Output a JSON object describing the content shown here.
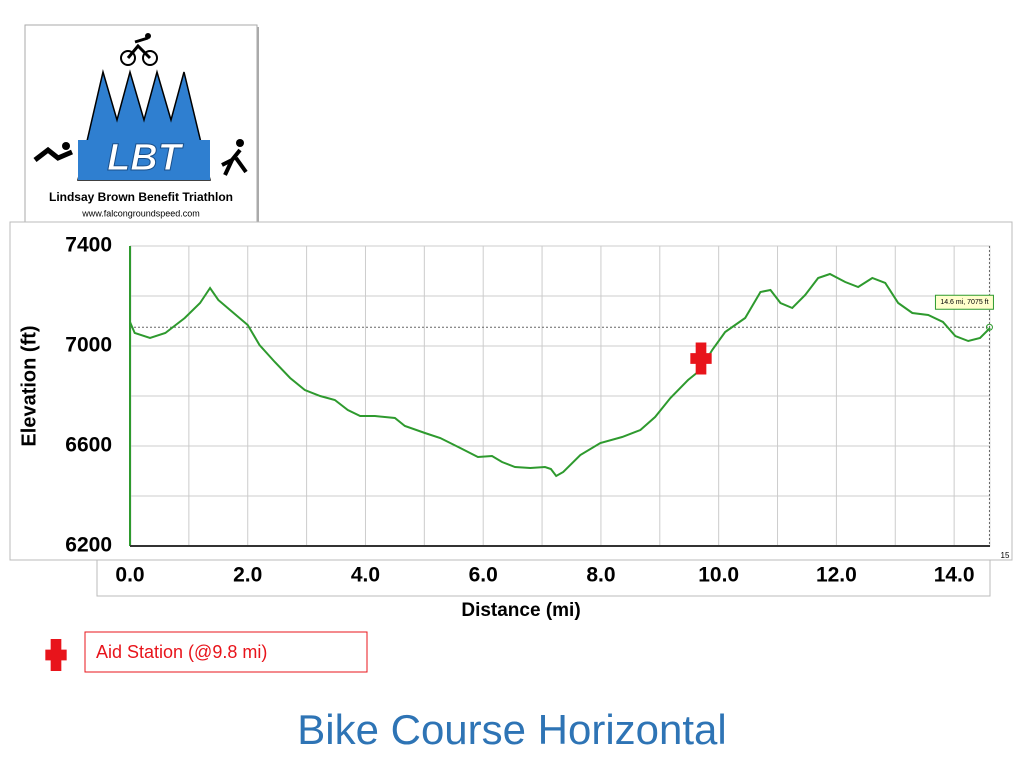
{
  "header": {
    "logo_title": "LBT",
    "logo_name": "Lindsay Brown Benefit Triathlon",
    "logo_url": "www.falcongroundspeed.com"
  },
  "chart_data": {
    "type": "line",
    "title": "Bike Course Horizontal",
    "x_label": "Distance (mi)",
    "y_label": "Elevation (ft)",
    "xlim": [
      0,
      15
    ],
    "ylim": [
      6200,
      7400
    ],
    "xticks": [
      {
        "value": 0,
        "label": "0.0"
      },
      {
        "value": 2,
        "label": "2.0"
      },
      {
        "value": 4,
        "label": "4.0"
      },
      {
        "value": 6,
        "label": "6.0"
      },
      {
        "value": 8,
        "label": "8.0"
      },
      {
        "value": 10,
        "label": "10.0"
      },
      {
        "value": 12,
        "label": "12.0"
      },
      {
        "value": 14,
        "label": "14.0"
      }
    ],
    "xminorticks": [
      1,
      3,
      5,
      7,
      9,
      11,
      13
    ],
    "yticks": [
      6200,
      6600,
      7000,
      7400
    ],
    "yminorticks": [
      6400,
      6800,
      7200
    ],
    "grid": true,
    "series": [
      {
        "color": "#2e9a2e",
        "x": [
          0,
          0.08,
          0.34,
          0.6,
          0.93,
          1.19,
          1.36,
          1.5,
          1.7,
          2.0,
          2.2,
          2.46,
          2.72,
          2.97,
          3.23,
          3.48,
          3.7,
          3.91,
          4.16,
          4.5,
          4.67,
          5.01,
          5.27,
          5.61,
          5.91,
          6.15,
          6.32,
          6.54,
          6.8,
          7.05,
          7.15,
          7.24,
          7.36,
          7.65,
          7.99,
          8.36,
          8.67,
          8.92,
          9.18,
          9.48,
          9.69,
          9.89,
          10.11,
          10.45,
          10.71,
          10.88,
          11.05,
          11.25,
          11.47,
          11.69,
          11.89,
          12.15,
          12.37,
          12.61,
          12.83,
          13.05,
          13.29,
          13.56,
          13.81,
          14.02,
          14.24,
          14.44,
          14.61
        ],
        "values": [
          7096,
          7052,
          7032,
          7052,
          7112,
          7172,
          7232,
          7184,
          7144,
          7084,
          7004,
          6936,
          6872,
          6824,
          6800,
          6784,
          6744,
          6720,
          6720,
          6712,
          6680,
          6652,
          6632,
          6592,
          6556,
          6560,
          6536,
          6516,
          6512,
          6516,
          6508,
          6480,
          6496,
          6564,
          6612,
          6636,
          6664,
          6716,
          6792,
          6864,
          6904,
          6984,
          7056,
          7112,
          7216,
          7224,
          7172,
          7152,
          7204,
          7272,
          7288,
          7256,
          7236,
          7272,
          7252,
          7172,
          7132,
          7124,
          7096,
          7040,
          7020,
          7032,
          7072
        ]
      }
    ],
    "annotation": {
      "text": "14.6 mi, 7075 ft",
      "x": 14.6,
      "y": 7075
    },
    "aid_station": {
      "label": "Aid Station (@9.8 mi)",
      "x": 9.7,
      "y": 6950,
      "color": "#e8141b"
    }
  }
}
